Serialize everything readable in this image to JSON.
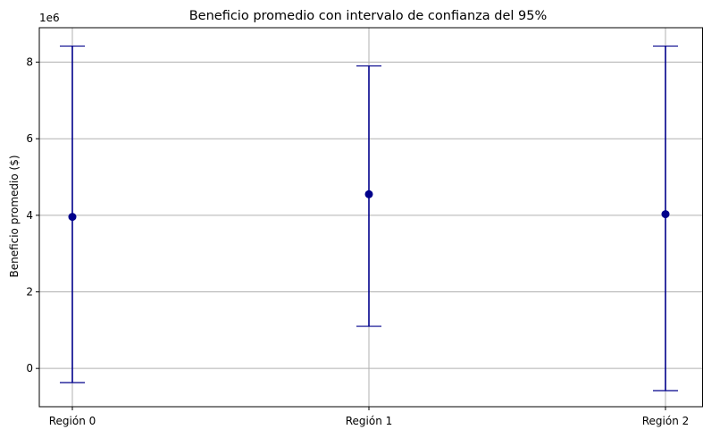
{
  "chart_data": {
    "type": "errorbar",
    "title": "Beneficio promedio con intervalo de confianza del 95%",
    "xlabel": "",
    "ylabel": "Beneficio promedio ($)",
    "y_offset_label": "1e6",
    "categories": [
      "Región 0",
      "Región 1",
      "Región 2"
    ],
    "means": [
      3960000,
      4550000,
      4030000
    ],
    "ci_lower": [
      -370000,
      1100000,
      -580000
    ],
    "ci_upper": [
      8420000,
      7900000,
      8420000
    ],
    "ylim": [
      -1000000,
      8900000
    ],
    "yticks": [
      0,
      2000000,
      4000000,
      6000000,
      8000000
    ],
    "ytick_labels": [
      "0",
      "2",
      "4",
      "6",
      "8"
    ],
    "grid": true,
    "colors": {
      "errorbar": "#00008b",
      "marker": "#00008b",
      "grid": "#b0b0b0"
    }
  }
}
